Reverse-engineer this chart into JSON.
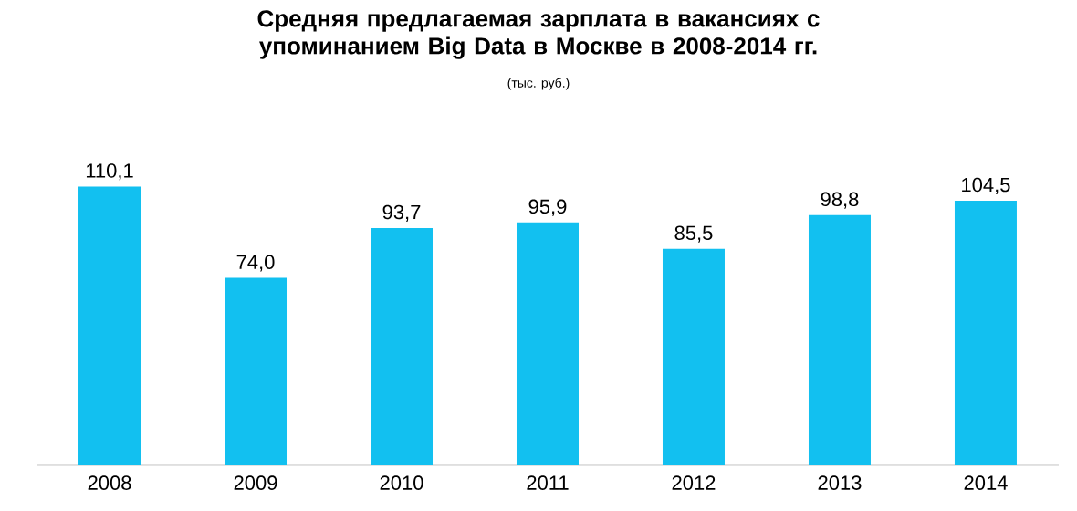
{
  "chart_data": {
    "type": "bar",
    "title": "Средняя предлагаемая зарплата в вакансиях с упоминанием Big Data в Москве в 2008-2014 гг.",
    "subtitle": "(тыс. руб.)",
    "categories": [
      "2008",
      "2009",
      "2010",
      "2011",
      "2012",
      "2013",
      "2014"
    ],
    "values": [
      110.1,
      74.0,
      93.7,
      95.9,
      85.5,
      98.8,
      104.5
    ],
    "value_labels": [
      "110,1",
      "74,0",
      "93,7",
      "95,9",
      "85,5",
      "98,8",
      "104,5"
    ],
    "color": "#12c0f0",
    "tick_labels": "x"
  }
}
